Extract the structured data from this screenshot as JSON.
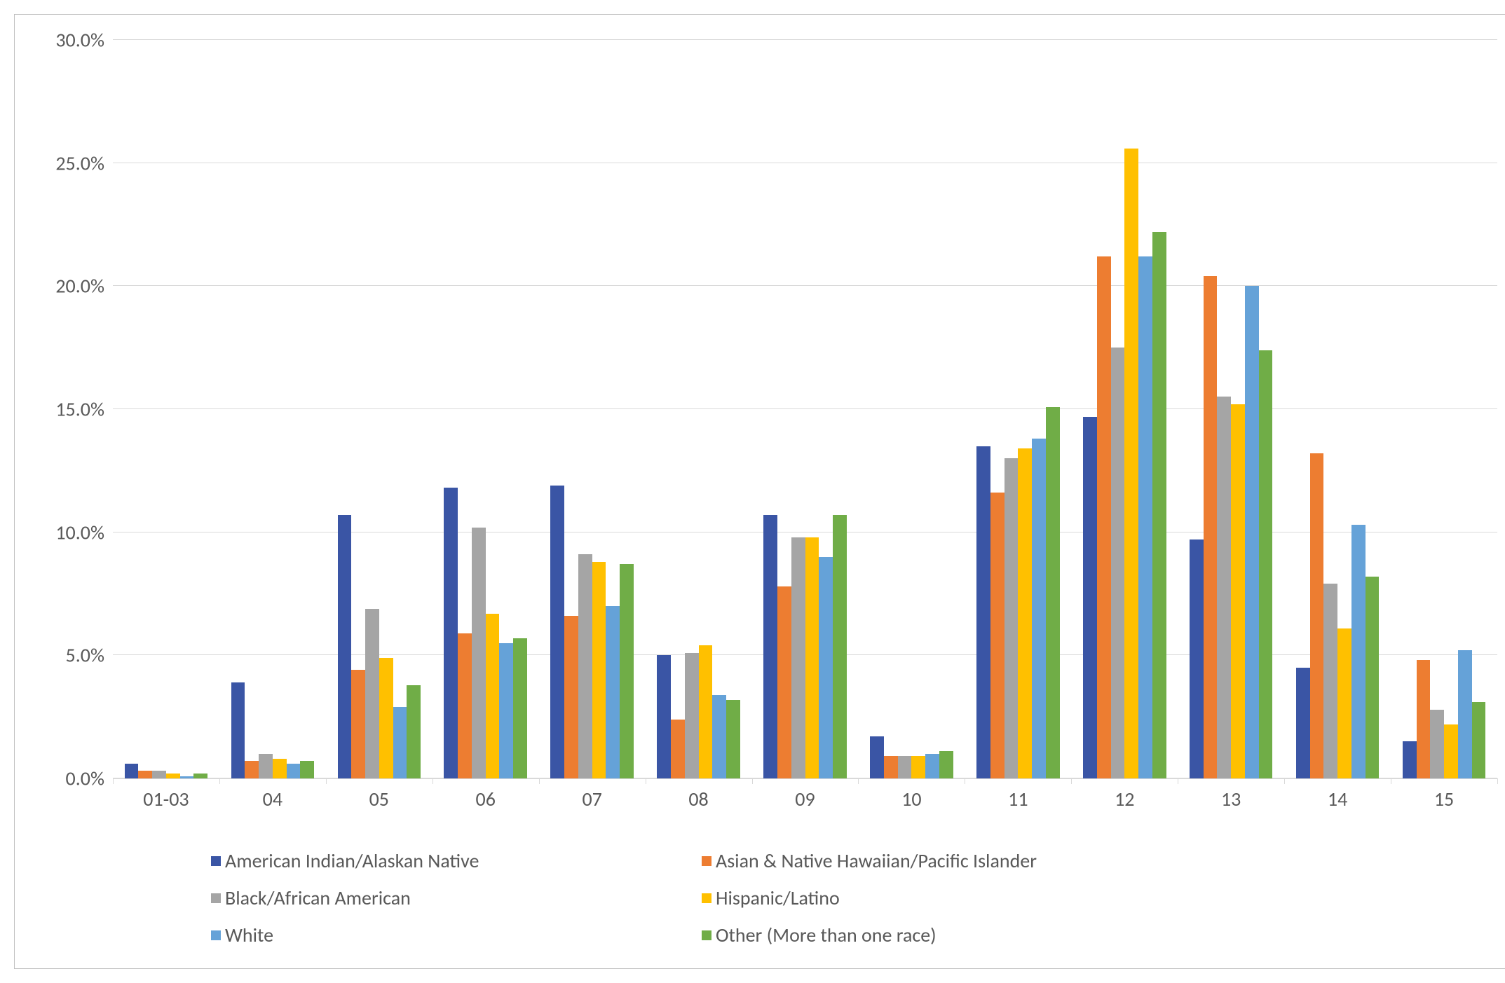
{
  "chart": {
    "type": "bar",
    "background_color": "#ffffff",
    "border_color": "#bfbfbf",
    "grid_color": "#d9d9d9",
    "axis_label_color": "#595959",
    "axis_label_fontsize": 28,
    "y_axis": {
      "min": 0,
      "max": 30,
      "ticks": [
        0,
        5,
        10,
        15,
        20,
        25,
        30
      ],
      "tick_labels": [
        "0.0%",
        "5.0%",
        "10.0%",
        "15.0%",
        "20.0%",
        "25.0%",
        "30.0%"
      ]
    },
    "categories": [
      "01-03",
      "04",
      "05",
      "06",
      "07",
      "08",
      "09",
      "10",
      "11",
      "12",
      "13",
      "14",
      "15"
    ],
    "series": [
      {
        "name": "American Indian/Alaskan Native",
        "color": "#3a55a5",
        "values": [
          0.6,
          3.9,
          10.7,
          11.8,
          11.9,
          5.0,
          10.7,
          1.7,
          13.5,
          14.7,
          9.7,
          4.5,
          1.5
        ]
      },
      {
        "name": "Asian & Native Hawaiian/Pacific Islander",
        "color": "#ed7d31",
        "values": [
          0.3,
          0.7,
          4.4,
          5.9,
          6.6,
          2.4,
          7.8,
          0.9,
          11.6,
          21.2,
          20.4,
          13.2,
          4.8
        ]
      },
      {
        "name": "Black/African American",
        "color": "#a5a5a5",
        "values": [
          0.3,
          1.0,
          6.9,
          10.2,
          9.1,
          5.1,
          9.8,
          0.9,
          13.0,
          17.5,
          15.5,
          7.9,
          2.8
        ]
      },
      {
        "name": "Hispanic/Latino",
        "color": "#ffc000",
        "values": [
          0.2,
          0.8,
          4.9,
          6.7,
          8.8,
          5.4,
          9.8,
          0.9,
          13.4,
          25.6,
          15.2,
          6.1,
          2.2
        ]
      },
      {
        "name": "White",
        "color": "#65a2d8",
        "values": [
          0.1,
          0.6,
          2.9,
          5.5,
          7.0,
          3.4,
          9.0,
          1.0,
          13.8,
          21.2,
          20.0,
          10.3,
          5.2
        ]
      },
      {
        "name": "Other (More than one race)",
        "color": "#70ad47",
        "values": [
          0.2,
          0.7,
          3.8,
          5.7,
          8.7,
          3.2,
          10.7,
          1.1,
          15.1,
          22.2,
          17.4,
          8.2,
          3.1
        ]
      }
    ],
    "bar_group_width_ratio": 0.78,
    "bar_gap_within_group": 0
  },
  "legend": {
    "fontsize": 28,
    "color": "#595959",
    "swatch_size": 14
  }
}
